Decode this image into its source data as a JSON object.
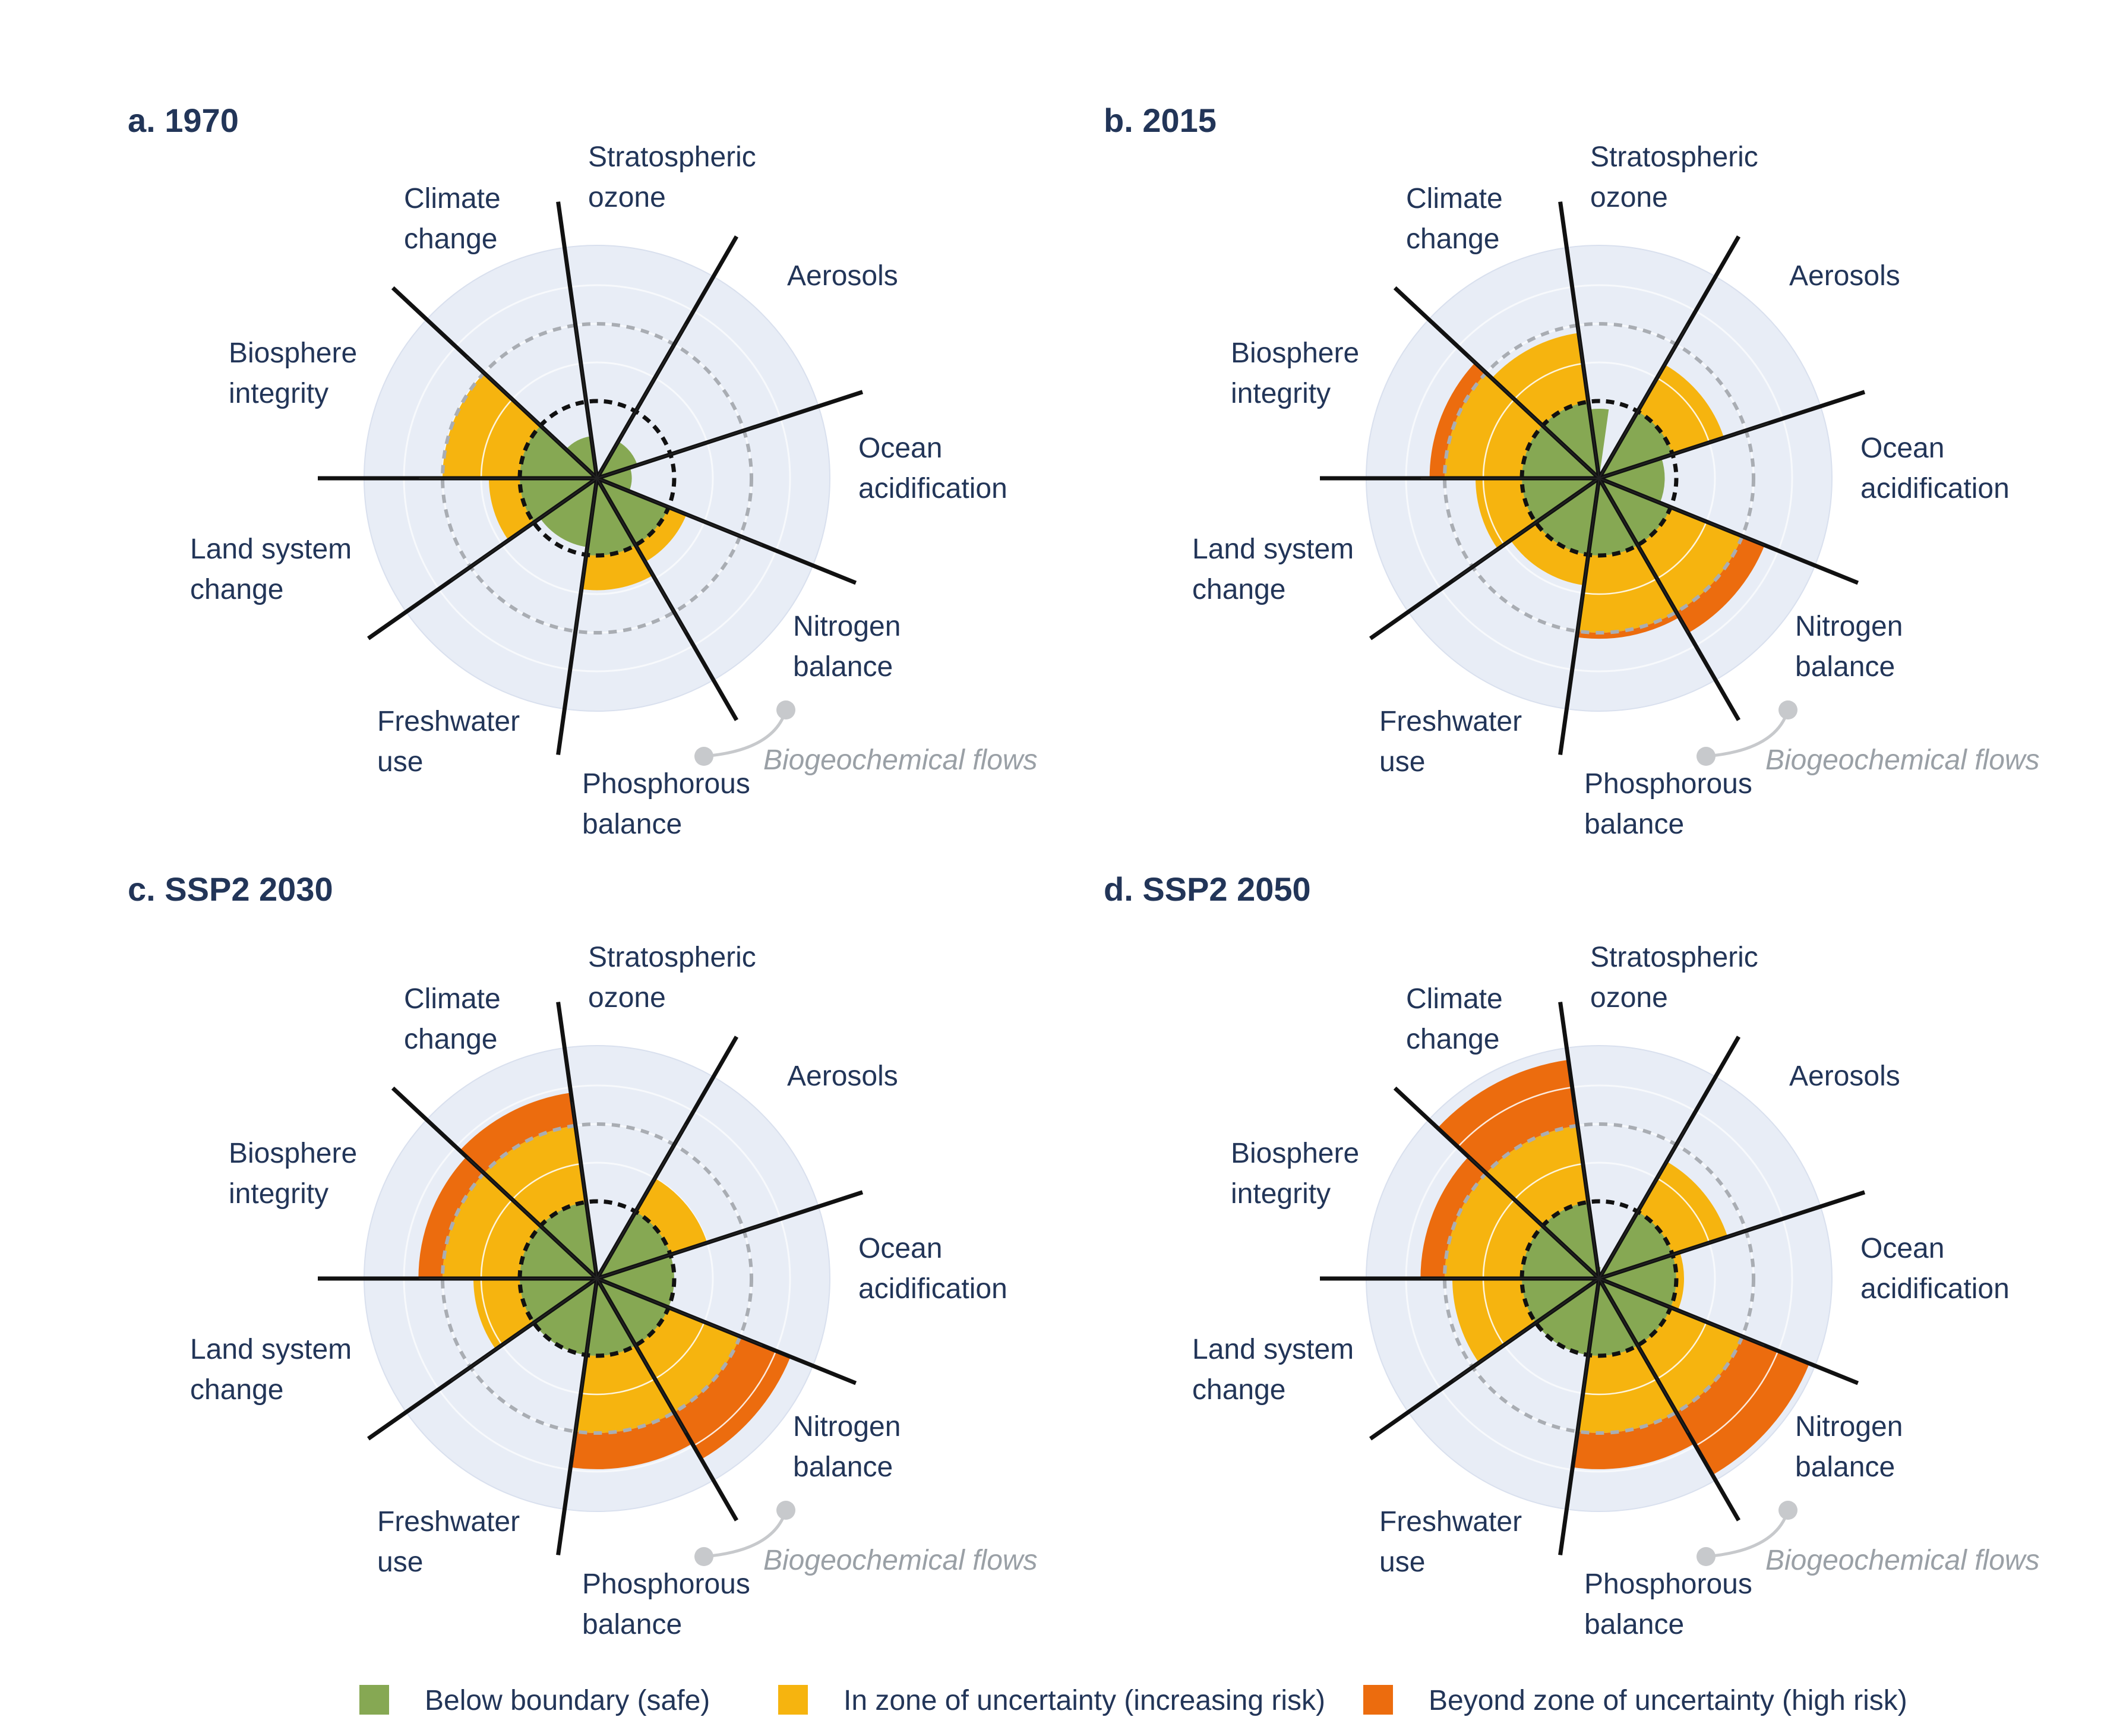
{
  "legend": {
    "items": [
      {
        "key": "safe",
        "label": "Below boundary (safe)",
        "color": "#86a853"
      },
      {
        "key": "uncertain",
        "label": "In zone of uncertainty (increasing risk)",
        "color": "#f6b40f"
      },
      {
        "key": "high",
        "label": "Beyond zone of uncertainty (high risk)",
        "color": "#ec6c0e"
      }
    ]
  },
  "chart_data": [
    {
      "type": "radial-bar",
      "title": "a. 1970",
      "biogeochemical_label": "Biogeochemical flows",
      "sectors": [
        {
          "label": "Stratospheric ozone",
          "value": 0.0
        },
        {
          "label": "Aerosols",
          "value": 0.55
        },
        {
          "label": "Ocean acidification",
          "value": 0.45
        },
        {
          "label": "Nitrogen balance",
          "value": 1.25
        },
        {
          "label": "Phosphorous balance",
          "value": 1.45
        },
        {
          "label": "Freshwater use",
          "value": 0.9
        },
        {
          "label": "Land system change",
          "value": 1.4
        },
        {
          "label": "Biosphere integrity",
          "value": 2.0
        },
        {
          "label": "Climate change",
          "value": 0.55
        }
      ]
    },
    {
      "type": "radial-bar",
      "title": "b. 2015",
      "biogeochemical_label": "Biogeochemical flows",
      "sectors": [
        {
          "label": "Stratospheric ozone",
          "value": 0.9
        },
        {
          "label": "Aerosols",
          "value": 1.7
        },
        {
          "label": "Ocean acidification",
          "value": 0.85
        },
        {
          "label": "Nitrogen balance",
          "value": 2.4
        },
        {
          "label": "Phosphorous balance",
          "value": 2.1
        },
        {
          "label": "Freshwater use",
          "value": 1.4
        },
        {
          "label": "Land system change",
          "value": 1.6
        },
        {
          "label": "Biosphere integrity",
          "value": 2.25
        },
        {
          "label": "Climate change",
          "value": 1.9
        }
      ]
    },
    {
      "type": "radial-bar",
      "title": "c. SSP2 2030",
      "biogeochemical_label": "Biogeochemical flows",
      "sectors": [
        {
          "label": "Stratospheric ozone",
          "value": 0.05
        },
        {
          "label": "Aerosols",
          "value": 1.5
        },
        {
          "label": "Ocean acidification",
          "value": 1.0
        },
        {
          "label": "Nitrogen balance",
          "value": 2.9
        },
        {
          "label": "Phosphorous balance",
          "value": 2.6
        },
        {
          "label": "Freshwater use",
          "value": 1.0
        },
        {
          "label": "Land system change",
          "value": 1.6
        },
        {
          "label": "Biosphere integrity",
          "value": 2.4
        },
        {
          "label": "Climate change",
          "value": 2.55
        }
      ]
    },
    {
      "type": "radial-bar",
      "title": "d. SSP2 2050",
      "biogeochemical_label": "Biogeochemical flows",
      "sectors": [
        {
          "label": "Stratospheric ozone",
          "value": 0.15
        },
        {
          "label": "Aerosols",
          "value": 1.75
        },
        {
          "label": "Ocean acidification",
          "value": 1.1
        },
        {
          "label": "Nitrogen balance",
          "value": 3.2
        },
        {
          "label": "Phosphorous balance",
          "value": 2.6
        },
        {
          "label": "Freshwater use",
          "value": 1.0
        },
        {
          "label": "Land system change",
          "value": 1.9
        },
        {
          "label": "Biosphere integrity",
          "value": 2.4
        },
        {
          "label": "Climate change",
          "value": 3.1
        }
      ]
    }
  ]
}
